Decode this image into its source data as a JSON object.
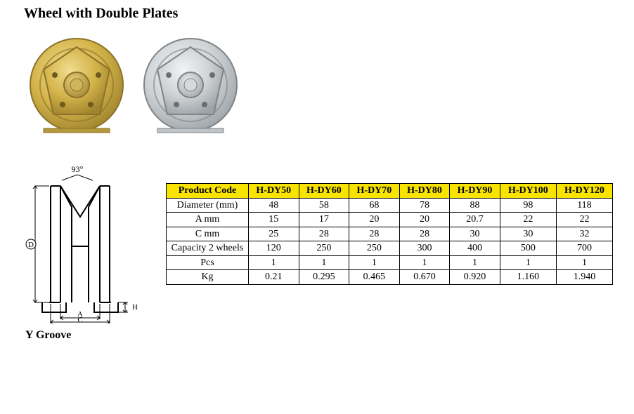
{
  "title": "Wheel with Double Plates",
  "diagram": {
    "angle_label": "93°",
    "dim_A": "A",
    "dim_C": "C",
    "dim_D": "D",
    "dim_H": "H",
    "caption": "Y Groove"
  },
  "table": {
    "header_bg": "#f8e400",
    "border_color": "#000000",
    "columns": [
      "Product Code",
      "H-DY50",
      "H-DY60",
      "H-DY70",
      "H-DY80",
      "H-DY90",
      "H-DY100",
      "H-DY120"
    ],
    "rows": [
      {
        "label": "Diameter (mm)",
        "cells": [
          "48",
          "58",
          "68",
          "78",
          "88",
          "98",
          "118"
        ]
      },
      {
        "label": "A mm",
        "cells": [
          "15",
          "17",
          "20",
          "20",
          "20.7",
          "22",
          "22"
        ]
      },
      {
        "label": "C mm",
        "cells": [
          "25",
          "28",
          "28",
          "28",
          "30",
          "30",
          "32"
        ]
      },
      {
        "label": "Capacity 2 wheels",
        "cells": [
          "120",
          "250",
          "250",
          "300",
          "400",
          "500",
          "700"
        ]
      },
      {
        "label": "Pcs",
        "cells": [
          "1",
          "1",
          "1",
          "1",
          "1",
          "1",
          "1"
        ]
      },
      {
        "label": "Kg",
        "cells": [
          "0.21",
          "0.295",
          "0.465",
          "0.670",
          "0.920",
          "1.160",
          "1.940"
        ]
      }
    ]
  },
  "photos": {
    "left_color_outer": "#d4b44a",
    "left_color_inner": "#c9a63a",
    "left_hub": "#b89b48",
    "right_color_outer": "#d8dadc",
    "right_color_inner": "#c2c6c9",
    "right_hub": "#b8babc"
  }
}
